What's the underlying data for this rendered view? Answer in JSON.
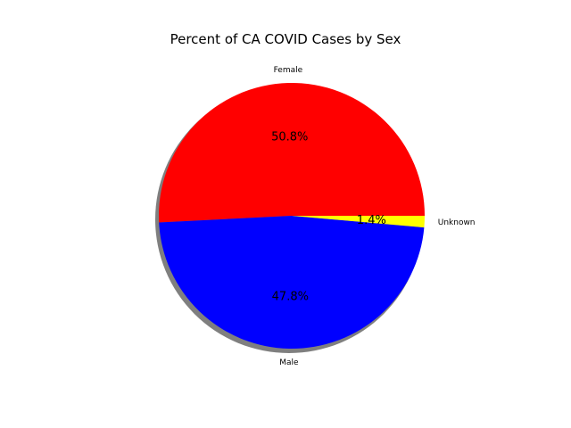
{
  "chart_data": {
    "type": "pie",
    "title": "Percent of CA COVID Cases by Sex",
    "categories": [
      "Female",
      "Male",
      "Unknown"
    ],
    "values": [
      50.8,
      47.8,
      1.4
    ],
    "percent_labels": [
      "50.8%",
      "47.8%",
      "1.4%"
    ],
    "colors": [
      "#ff0000",
      "#0000ff",
      "#ffff00"
    ],
    "start_angle_deg": 0,
    "direction": "counterclockwise",
    "shadow": true,
    "legend": "none"
  }
}
